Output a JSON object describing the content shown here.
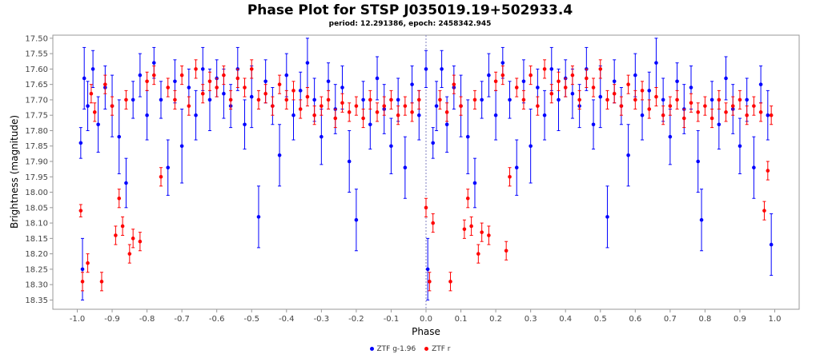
{
  "chart_data": {
    "type": "scatter",
    "title": "Phase Plot for STSP J035019.19+502933.4",
    "subtitle": "period: 12.291386, epoch: 2458342.945",
    "xlabel": "Phase",
    "ylabel": "Brightness (magnitude)",
    "xlim": [
      -1.07,
      1.07
    ],
    "ylim": [
      17.49,
      18.38
    ],
    "y_inverted": true,
    "x_ticks": [
      -1.0,
      -0.9,
      -0.8,
      -0.7,
      -0.6,
      -0.5,
      -0.4,
      -0.3,
      -0.2,
      -0.1,
      0.0,
      0.1,
      0.2,
      0.3,
      0.4,
      0.5,
      0.6,
      0.7,
      0.8,
      0.9,
      1.0
    ],
    "x_tick_labels": [
      "-1.0",
      "-0.9",
      "-0.8",
      "-0.7",
      "-0.6",
      "-0.5",
      "-0.4",
      "-0.3",
      "-0.2",
      "-0.1",
      "0.0",
      "0.1",
      "0.2",
      "0.3",
      "0.4",
      "0.5",
      "0.6",
      "0.7",
      "0.8",
      "0.9",
      "1.0"
    ],
    "y_ticks": [
      17.5,
      17.55,
      17.6,
      17.65,
      17.7,
      17.75,
      17.8,
      17.85,
      17.9,
      17.95,
      18.0,
      18.05,
      18.1,
      18.15,
      18.2,
      18.25,
      18.3,
      18.35
    ],
    "y_tick_labels": [
      "17.50",
      "17.55",
      "17.60",
      "17.65",
      "17.70",
      "17.75",
      "17.80",
      "17.85",
      "17.90",
      "17.95",
      "18.00",
      "18.05",
      "18.10",
      "18.15",
      "18.20",
      "18.25",
      "18.30",
      "18.35"
    ],
    "grid": false,
    "epoch_marker_x": 0.0,
    "legend_position": "bottom-center",
    "series": [
      {
        "name": "ZTF g-1.96",
        "color": "#0000ff",
        "points": [
          [
            -0.99,
            17.84,
            0.05
          ],
          [
            -0.985,
            18.25,
            0.1
          ],
          [
            -0.98,
            17.63,
            0.1
          ],
          [
            -0.97,
            17.72,
            0.08
          ],
          [
            -0.955,
            17.6,
            0.06
          ],
          [
            -0.94,
            17.78,
            0.09
          ],
          [
            -0.92,
            17.66,
            0.07
          ],
          [
            -0.9,
            17.72,
            0.1
          ],
          [
            -0.88,
            17.82,
            0.12
          ],
          [
            -0.86,
            17.97,
            0.08
          ],
          [
            -0.84,
            17.7,
            0.06
          ],
          [
            -0.82,
            17.62,
            0.07
          ],
          [
            -0.8,
            17.75,
            0.08
          ],
          [
            -0.78,
            17.58,
            0.05
          ],
          [
            -0.76,
            17.7,
            0.06
          ],
          [
            -0.74,
            17.92,
            0.09
          ],
          [
            -0.72,
            17.64,
            0.07
          ],
          [
            -0.7,
            17.85,
            0.12
          ],
          [
            -0.68,
            17.66,
            0.06
          ],
          [
            -0.66,
            17.75,
            0.08
          ],
          [
            -0.64,
            17.6,
            0.07
          ],
          [
            -0.62,
            17.7,
            0.1
          ],
          [
            -0.6,
            17.63,
            0.06
          ],
          [
            -0.58,
            17.68,
            0.08
          ],
          [
            -0.56,
            17.72,
            0.07
          ],
          [
            -0.54,
            17.6,
            0.07
          ],
          [
            -0.52,
            17.78,
            0.08
          ],
          [
            -0.5,
            17.69,
            0.1
          ],
          [
            -0.48,
            18.08,
            0.1
          ],
          [
            -0.46,
            17.64,
            0.07
          ],
          [
            -0.44,
            17.72,
            0.06
          ],
          [
            -0.42,
            17.88,
            0.1
          ],
          [
            -0.4,
            17.62,
            0.07
          ],
          [
            -0.38,
            17.75,
            0.08
          ],
          [
            -0.36,
            17.67,
            0.06
          ],
          [
            -0.34,
            17.58,
            0.08
          ],
          [
            -0.32,
            17.7,
            0.07
          ],
          [
            -0.3,
            17.82,
            0.09
          ],
          [
            -0.28,
            17.64,
            0.06
          ],
          [
            -0.26,
            17.73,
            0.08
          ],
          [
            -0.24,
            17.66,
            0.07
          ],
          [
            -0.22,
            17.9,
            0.1
          ],
          [
            -0.2,
            18.09,
            0.1
          ],
          [
            -0.18,
            17.7,
            0.06
          ],
          [
            -0.16,
            17.78,
            0.08
          ],
          [
            -0.14,
            17.63,
            0.07
          ],
          [
            -0.12,
            17.73,
            0.08
          ],
          [
            -0.1,
            17.85,
            0.09
          ],
          [
            -0.08,
            17.7,
            0.07
          ],
          [
            -0.06,
            17.92,
            0.1
          ],
          [
            -0.04,
            17.65,
            0.06
          ],
          [
            -0.02,
            17.75,
            0.08
          ],
          [
            0.0,
            17.6,
            0.06
          ],
          [
            0.005,
            18.25,
            0.1
          ],
          [
            0.02,
            17.84,
            0.05
          ],
          [
            0.03,
            17.72,
            0.08
          ],
          [
            0.045,
            17.6,
            0.06
          ],
          [
            0.06,
            17.78,
            0.09
          ],
          [
            0.08,
            17.66,
            0.07
          ],
          [
            0.1,
            17.72,
            0.1
          ],
          [
            0.12,
            17.82,
            0.12
          ],
          [
            0.14,
            17.97,
            0.08
          ],
          [
            0.16,
            17.7,
            0.06
          ],
          [
            0.18,
            17.62,
            0.07
          ],
          [
            0.2,
            17.75,
            0.08
          ],
          [
            0.22,
            17.58,
            0.05
          ],
          [
            0.24,
            17.7,
            0.06
          ],
          [
            0.26,
            17.92,
            0.09
          ],
          [
            0.28,
            17.64,
            0.07
          ],
          [
            0.3,
            17.85,
            0.12
          ],
          [
            0.32,
            17.66,
            0.06
          ],
          [
            0.34,
            17.75,
            0.08
          ],
          [
            0.36,
            17.6,
            0.07
          ],
          [
            0.38,
            17.7,
            0.1
          ],
          [
            0.4,
            17.63,
            0.06
          ],
          [
            0.42,
            17.68,
            0.08
          ],
          [
            0.44,
            17.72,
            0.07
          ],
          [
            0.46,
            17.6,
            0.07
          ],
          [
            0.48,
            17.78,
            0.08
          ],
          [
            0.5,
            17.69,
            0.1
          ],
          [
            0.52,
            18.08,
            0.1
          ],
          [
            0.54,
            17.64,
            0.07
          ],
          [
            0.56,
            17.72,
            0.06
          ],
          [
            0.58,
            17.88,
            0.1
          ],
          [
            0.6,
            17.62,
            0.07
          ],
          [
            0.62,
            17.75,
            0.08
          ],
          [
            0.64,
            17.67,
            0.06
          ],
          [
            0.66,
            17.58,
            0.08
          ],
          [
            0.68,
            17.7,
            0.07
          ],
          [
            0.7,
            17.82,
            0.09
          ],
          [
            0.72,
            17.64,
            0.06
          ],
          [
            0.74,
            17.73,
            0.08
          ],
          [
            0.76,
            17.66,
            0.07
          ],
          [
            0.78,
            17.9,
            0.1
          ],
          [
            0.79,
            18.09,
            0.1
          ],
          [
            0.82,
            17.7,
            0.06
          ],
          [
            0.84,
            17.78,
            0.08
          ],
          [
            0.86,
            17.63,
            0.07
          ],
          [
            0.88,
            17.73,
            0.08
          ],
          [
            0.9,
            17.85,
            0.09
          ],
          [
            0.92,
            17.7,
            0.07
          ],
          [
            0.94,
            17.92,
            0.1
          ],
          [
            0.96,
            17.65,
            0.06
          ],
          [
            0.98,
            17.75,
            0.08
          ],
          [
            0.99,
            18.17,
            0.1
          ]
        ]
      },
      {
        "name": "ZTF r",
        "color": "#ff0000",
        "points": [
          [
            -0.99,
            18.06,
            0.02
          ],
          [
            -0.985,
            18.29,
            0.03
          ],
          [
            -0.97,
            18.23,
            0.03
          ],
          [
            -0.96,
            17.68,
            0.03
          ],
          [
            -0.95,
            17.74,
            0.03
          ],
          [
            -0.93,
            18.29,
            0.03
          ],
          [
            -0.92,
            17.65,
            0.03
          ],
          [
            -0.9,
            17.72,
            0.03
          ],
          [
            -0.89,
            18.14,
            0.03
          ],
          [
            -0.88,
            18.02,
            0.03
          ],
          [
            -0.87,
            18.11,
            0.03
          ],
          [
            -0.86,
            17.7,
            0.03
          ],
          [
            -0.85,
            18.2,
            0.03
          ],
          [
            -0.84,
            18.15,
            0.03
          ],
          [
            -0.82,
            18.16,
            0.03
          ],
          [
            -0.8,
            17.64,
            0.03
          ],
          [
            -0.78,
            17.62,
            0.03
          ],
          [
            -0.76,
            17.95,
            0.03
          ],
          [
            -0.74,
            17.66,
            0.03
          ],
          [
            -0.72,
            17.7,
            0.03
          ],
          [
            -0.7,
            17.62,
            0.03
          ],
          [
            -0.68,
            17.72,
            0.03
          ],
          [
            -0.66,
            17.6,
            0.03
          ],
          [
            -0.64,
            17.68,
            0.03
          ],
          [
            -0.62,
            17.64,
            0.03
          ],
          [
            -0.6,
            17.66,
            0.03
          ],
          [
            -0.58,
            17.62,
            0.03
          ],
          [
            -0.56,
            17.7,
            0.03
          ],
          [
            -0.54,
            17.63,
            0.03
          ],
          [
            -0.52,
            17.66,
            0.03
          ],
          [
            -0.5,
            17.6,
            0.03
          ],
          [
            -0.48,
            17.7,
            0.03
          ],
          [
            -0.46,
            17.68,
            0.03
          ],
          [
            -0.44,
            17.72,
            0.03
          ],
          [
            -0.42,
            17.65,
            0.03
          ],
          [
            -0.4,
            17.7,
            0.03
          ],
          [
            -0.38,
            17.67,
            0.03
          ],
          [
            -0.36,
            17.73,
            0.03
          ],
          [
            -0.34,
            17.69,
            0.03
          ],
          [
            -0.32,
            17.75,
            0.03
          ],
          [
            -0.3,
            17.72,
            0.03
          ],
          [
            -0.28,
            17.7,
            0.03
          ],
          [
            -0.26,
            17.76,
            0.03
          ],
          [
            -0.24,
            17.71,
            0.03
          ],
          [
            -0.22,
            17.74,
            0.03
          ],
          [
            -0.2,
            17.72,
            0.03
          ],
          [
            -0.18,
            17.76,
            0.03
          ],
          [
            -0.16,
            17.7,
            0.03
          ],
          [
            -0.14,
            17.74,
            0.03
          ],
          [
            -0.12,
            17.72,
            0.03
          ],
          [
            -0.1,
            17.7,
            0.03
          ],
          [
            -0.08,
            17.75,
            0.03
          ],
          [
            -0.06,
            17.72,
            0.03
          ],
          [
            -0.04,
            17.74,
            0.03
          ],
          [
            -0.02,
            17.7,
            0.03
          ],
          [
            0.0,
            18.05,
            0.03
          ],
          [
            0.01,
            18.29,
            0.03
          ],
          [
            0.02,
            18.1,
            0.03
          ],
          [
            0.04,
            17.7,
            0.03
          ],
          [
            0.06,
            17.74,
            0.03
          ],
          [
            0.07,
            18.29,
            0.03
          ],
          [
            0.08,
            17.65,
            0.03
          ],
          [
            0.1,
            17.72,
            0.03
          ],
          [
            0.11,
            18.12,
            0.03
          ],
          [
            0.12,
            18.02,
            0.03
          ],
          [
            0.13,
            18.11,
            0.03
          ],
          [
            0.14,
            17.7,
            0.03
          ],
          [
            0.15,
            18.2,
            0.03
          ],
          [
            0.16,
            18.13,
            0.03
          ],
          [
            0.18,
            18.14,
            0.03
          ],
          [
            0.2,
            17.64,
            0.03
          ],
          [
            0.22,
            17.62,
            0.03
          ],
          [
            0.23,
            18.19,
            0.03
          ],
          [
            0.24,
            17.95,
            0.03
          ],
          [
            0.26,
            17.66,
            0.03
          ],
          [
            0.28,
            17.7,
            0.03
          ],
          [
            0.3,
            17.62,
            0.03
          ],
          [
            0.32,
            17.72,
            0.03
          ],
          [
            0.34,
            17.6,
            0.03
          ],
          [
            0.36,
            17.68,
            0.03
          ],
          [
            0.38,
            17.64,
            0.03
          ],
          [
            0.4,
            17.66,
            0.03
          ],
          [
            0.42,
            17.62,
            0.03
          ],
          [
            0.44,
            17.7,
            0.03
          ],
          [
            0.46,
            17.63,
            0.03
          ],
          [
            0.48,
            17.66,
            0.03
          ],
          [
            0.5,
            17.6,
            0.03
          ],
          [
            0.52,
            17.7,
            0.03
          ],
          [
            0.54,
            17.68,
            0.03
          ],
          [
            0.56,
            17.72,
            0.03
          ],
          [
            0.58,
            17.65,
            0.03
          ],
          [
            0.6,
            17.7,
            0.03
          ],
          [
            0.62,
            17.67,
            0.03
          ],
          [
            0.64,
            17.73,
            0.03
          ],
          [
            0.66,
            17.69,
            0.03
          ],
          [
            0.68,
            17.75,
            0.03
          ],
          [
            0.7,
            17.72,
            0.03
          ],
          [
            0.72,
            17.7,
            0.03
          ],
          [
            0.74,
            17.76,
            0.03
          ],
          [
            0.76,
            17.71,
            0.03
          ],
          [
            0.78,
            17.74,
            0.03
          ],
          [
            0.8,
            17.72,
            0.03
          ],
          [
            0.82,
            17.76,
            0.03
          ],
          [
            0.84,
            17.7,
            0.03
          ],
          [
            0.86,
            17.74,
            0.03
          ],
          [
            0.88,
            17.72,
            0.03
          ],
          [
            0.9,
            17.7,
            0.03
          ],
          [
            0.92,
            17.75,
            0.03
          ],
          [
            0.94,
            17.72,
            0.03
          ],
          [
            0.96,
            17.74,
            0.03
          ],
          [
            0.97,
            18.06,
            0.03
          ],
          [
            0.98,
            17.93,
            0.03
          ],
          [
            0.99,
            17.75,
            0.03
          ]
        ]
      }
    ]
  }
}
